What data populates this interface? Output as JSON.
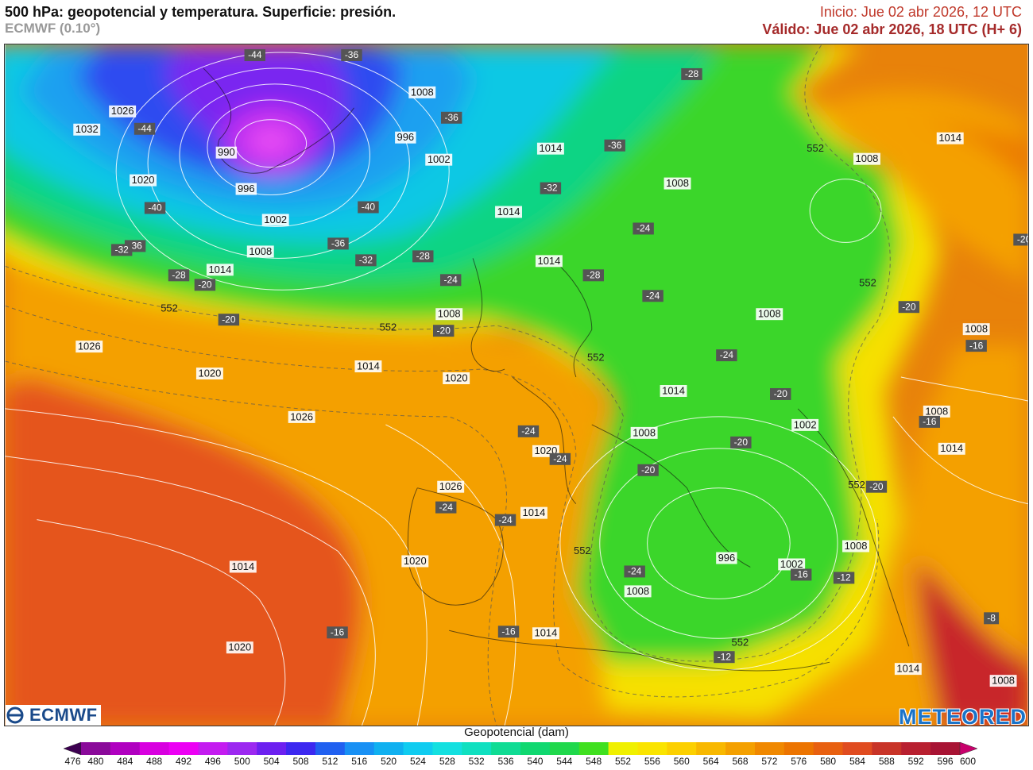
{
  "header": {
    "title": "500 hPa: geopotencial y temperatura. Superficie: presión.",
    "model": "ECMWF (0.10°)",
    "init": "Inicio: Jue 02 abr 2026, 12 UTC",
    "valid": "Válido: Jue 02 abr 2026, 18 UTC (H+ 6)"
  },
  "logos": {
    "left": "ECMWF",
    "right": "METEORED"
  },
  "legend": {
    "title": "Geopotencial (dam)",
    "levels": [
      "476",
      "480",
      "484",
      "488",
      "492",
      "496",
      "500",
      "504",
      "508",
      "512",
      "516",
      "520",
      "524",
      "528",
      "532",
      "536",
      "540",
      "544",
      "548",
      "552",
      "556",
      "560",
      "564",
      "568",
      "572",
      "576",
      "580",
      "584",
      "588",
      "592",
      "596",
      "600"
    ],
    "colors": [
      "#3c0050",
      "#8a0a9a",
      "#b000c0",
      "#d800e0",
      "#ec00f4",
      "#c41cf0",
      "#9c28f0",
      "#6c20f0",
      "#3c28f0",
      "#2060f0",
      "#1890f4",
      "#10b0f0",
      "#10ccf0",
      "#14e0e0",
      "#10e0c0",
      "#10dc94",
      "#10d870",
      "#20d84c",
      "#40e020",
      "#f0f000",
      "#fae400",
      "#fcd000",
      "#f8b800",
      "#f4a000",
      "#f08800",
      "#ec7400",
      "#e86010",
      "#e04c20",
      "#c83428",
      "#b82030",
      "#a81434",
      "#c8006c"
    ]
  },
  "map": {
    "pressure_labels": [
      "1008",
      "1026",
      "1032",
      "990",
      "996",
      "1002",
      "1020",
      "996",
      "1002",
      "1008",
      "1014",
      "1014",
      "1014",
      "1008",
      "1014",
      "1008",
      "1008",
      "1014",
      "1008",
      "1014",
      "1008",
      "1026",
      "1020",
      "1014",
      "1020",
      "1026",
      "1008",
      "1002",
      "1008",
      "1020",
      "1014",
      "1026",
      "1014",
      "996",
      "1002",
      "1008",
      "1008",
      "1020",
      "1014",
      "1014",
      "1008",
      "1020",
      "1014",
      "1026"
    ],
    "temp_labels": [
      "-44",
      "-36",
      "-44",
      "-36",
      "-28",
      "-36",
      "-32",
      "-40",
      "-40",
      "-36",
      "-32",
      "-36",
      "-28",
      "-24",
      "-32",
      "-28",
      "-24",
      "-28",
      "-24",
      "-20",
      "-20",
      "-20",
      "-24",
      "-20",
      "-16",
      "-20",
      "-16",
      "-24",
      "-24",
      "-20",
      "-20",
      "-24",
      "-24",
      "-16",
      "-12",
      "-20",
      "-24",
      "-8",
      "-20",
      "-16",
      "-16",
      "-12"
    ],
    "height_labels": [
      "552",
      "552",
      "552",
      "552",
      "552",
      "552",
      "552",
      "552"
    ]
  }
}
